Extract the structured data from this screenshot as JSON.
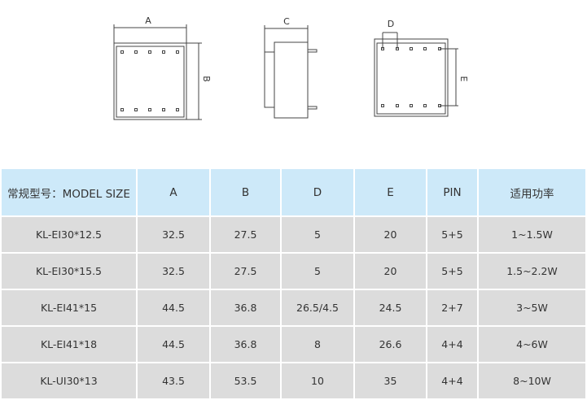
{
  "diagram": {
    "labels": {
      "a": "A",
      "b": "B",
      "c": "C",
      "d": "D",
      "e": "E"
    }
  },
  "table": {
    "headers": [
      "常规型号：MODEL SIZE",
      "A",
      "B",
      "D",
      "E",
      "PIN",
      "适用功率"
    ],
    "rows": [
      [
        "KL-EI30*12.5",
        "32.5",
        "27.5",
        "5",
        "20",
        "5+5",
        "1~1.5W"
      ],
      [
        "KL-EI30*15.5",
        "32.5",
        "27.5",
        "5",
        "20",
        "5+5",
        "1.5~2.2W"
      ],
      [
        "KL-EI41*15",
        "44.5",
        "36.8",
        "26.5/4.5",
        "24.5",
        "2+7",
        "3~5W"
      ],
      [
        "KL-EI41*18",
        "44.5",
        "36.8",
        "8",
        "26.6",
        "4+4",
        "4~6W"
      ],
      [
        "KL-UI30*13",
        "43.5",
        "53.5",
        "10",
        "35",
        "4+4",
        "8~10W"
      ]
    ]
  }
}
